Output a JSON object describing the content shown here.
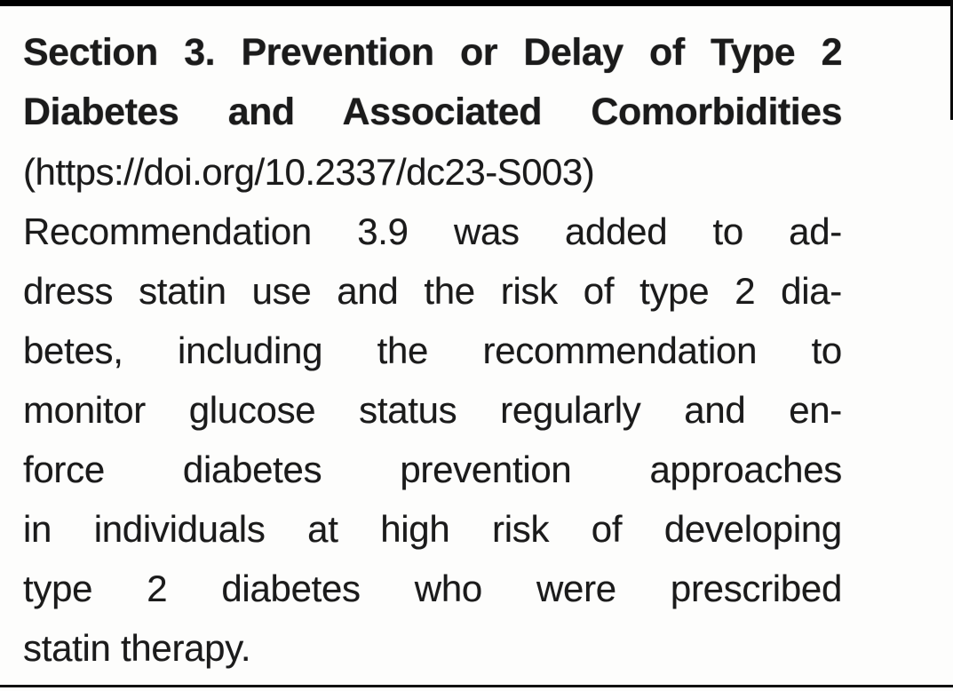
{
  "page": {
    "background_color": "#fdfdfc",
    "text_color": "#1b1b1b",
    "top_bar_color": "#000000",
    "bottom_rule_color": "#111111"
  },
  "heading": {
    "lines": [
      "Section 3. Prevention or Delay of Type 2",
      "Diabetes and Associated Comorbidities"
    ],
    "doi_line": "(https://doi.org/10.2337/dc23-S003)"
  },
  "paragraph": {
    "lines": [
      "Recommendation 3.9 was added to ad-",
      "dress statin use and the risk of type 2 dia-",
      "betes, including the recommendation to",
      "monitor glucose status regularly and en-",
      "force diabetes prevention approaches",
      "in individuals at high risk of developing",
      "type 2 diabetes who were prescribed",
      "statin therapy."
    ]
  }
}
